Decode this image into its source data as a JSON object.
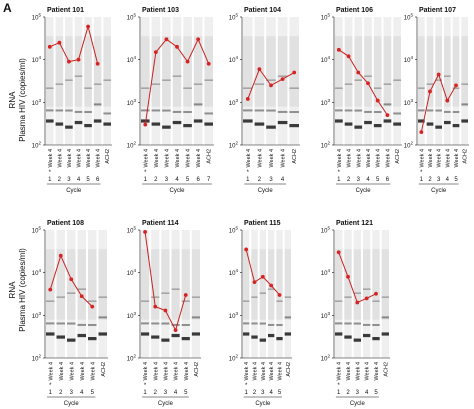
{
  "figure_label": "A",
  "y_axis_label_line1": "RNA",
  "y_axis_label_line2": "Plasma HIV (copies/ml)",
  "y_ticks": [
    "10^2",
    "10^3",
    "10^4",
    "10^5"
  ],
  "colors": {
    "series": "#cc1f1f",
    "points": "#d42424",
    "gel_band": "#1a1a1a"
  },
  "chart_data": [
    {
      "type": "line",
      "title": "Patient 101",
      "y_scale": "log",
      "ylim": [
        100,
        100000
      ],
      "xlabel": "Cycle",
      "categories": [
        "Week 4",
        "Week 4",
        "Week 4",
        "Week 4",
        "Week 4",
        "Week 4",
        "ACH2"
      ],
      "cycle_numbers": [
        "1",
        "2",
        "3",
        "4",
        "5",
        "6",
        ""
      ],
      "marker": "*",
      "values": [
        20000,
        25000,
        9000,
        10000,
        60000,
        8000,
        null
      ]
    },
    {
      "type": "line",
      "title": "Patient 103",
      "y_scale": "log",
      "ylim": [
        100,
        100000
      ],
      "xlabel": "Cycle",
      "categories": [
        "Week 4",
        "Week 4",
        "Week 4",
        "Week 4",
        "Week 4",
        "Week 4",
        "ACH2"
      ],
      "cycle_numbers": [
        "1",
        "2",
        "3",
        "4",
        "5",
        "6",
        "7"
      ],
      "marker": "*",
      "values": [
        300,
        15000,
        30000,
        20000,
        9000,
        30000,
        8000
      ]
    },
    {
      "type": "line",
      "title": "Patient 104",
      "y_scale": "log",
      "ylim": [
        100,
        100000
      ],
      "xlabel": "Cycle",
      "categories": [
        "Week 4",
        "Week 4",
        "Week 4",
        "Week 4",
        "ACH2"
      ],
      "cycle_numbers": [
        "1",
        "2",
        "3",
        "4",
        ""
      ],
      "marker": "*",
      "values": [
        1200,
        6000,
        2500,
        3500,
        5000
      ]
    },
    {
      "type": "line",
      "title": "Patient 106",
      "y_scale": "log",
      "ylim": [
        100,
        100000
      ],
      "xlabel": "Cycle",
      "categories": [
        "Week 4",
        "Week 4",
        "Week 4",
        "Week 4",
        "Week 4",
        "Week 4",
        "ACH2"
      ],
      "cycle_numbers": [
        "1",
        "2",
        "3",
        "4",
        "5",
        "6",
        ""
      ],
      "marker": "*",
      "values": [
        17000,
        12000,
        5000,
        2800,
        1100,
        500,
        null
      ]
    },
    {
      "type": "line",
      "title": "Patient 107",
      "y_scale": "log",
      "ylim": [
        100,
        100000
      ],
      "xlabel": "Cycle",
      "categories": [
        "Week 4",
        "Week 4",
        "Week 4",
        "Week 4",
        "Week 4",
        "ACH2"
      ],
      "cycle_numbers": [
        "1",
        "2",
        "3",
        "4",
        "5",
        ""
      ],
      "marker": "*",
      "values": [
        200,
        1800,
        4500,
        1100,
        2500,
        null
      ]
    },
    {
      "type": "line",
      "title": "Patient 108",
      "y_scale": "log",
      "ylim": [
        100,
        100000
      ],
      "xlabel": "Cycle",
      "categories": [
        "Week 4",
        "Week 4",
        "Week 4",
        "Week 4",
        "Week 4",
        "ACH2"
      ],
      "cycle_numbers": [
        "1",
        "2",
        "3",
        "4",
        "5",
        ""
      ],
      "marker": "*",
      "values": [
        4000,
        25000,
        7000,
        2800,
        1600,
        null
      ]
    },
    {
      "type": "line",
      "title": "Patient 114",
      "y_scale": "log",
      "ylim": [
        100,
        100000
      ],
      "xlabel": "Cycle",
      "categories": [
        "Week 4",
        "Week 4",
        "Week 4",
        "Week 4",
        "Week 4",
        "ACH2"
      ],
      "cycle_numbers": [
        "1",
        "2",
        "3",
        "4",
        "5",
        ""
      ],
      "marker": "*",
      "values": [
        90000,
        1600,
        1300,
        450,
        3000,
        null
      ]
    },
    {
      "type": "line",
      "title": "Patient 115",
      "y_scale": "log",
      "ylim": [
        100,
        100000
      ],
      "xlabel": "Cycle",
      "categories": [
        "Week 4",
        "Week 4",
        "Week 4",
        "Week 4",
        "Week 4",
        "ACH2"
      ],
      "cycle_numbers": [
        "1",
        "2",
        "3",
        "4",
        "5",
        ""
      ],
      "marker": "*",
      "values": [
        35000,
        6000,
        8000,
        5000,
        3000,
        null
      ]
    },
    {
      "type": "line",
      "title": "Patient 121",
      "y_scale": "log",
      "ylim": [
        100,
        100000
      ],
      "xlabel": "Cycle",
      "categories": [
        "Week 4",
        "Week 4",
        "Week 4",
        "Week 4",
        "Week 4",
        "ACH2"
      ],
      "cycle_numbers": [
        "1",
        "2",
        "3",
        "4",
        "5",
        ""
      ],
      "marker": "*",
      "values": [
        30000,
        8000,
        2000,
        2500,
        3200,
        null
      ]
    }
  ]
}
